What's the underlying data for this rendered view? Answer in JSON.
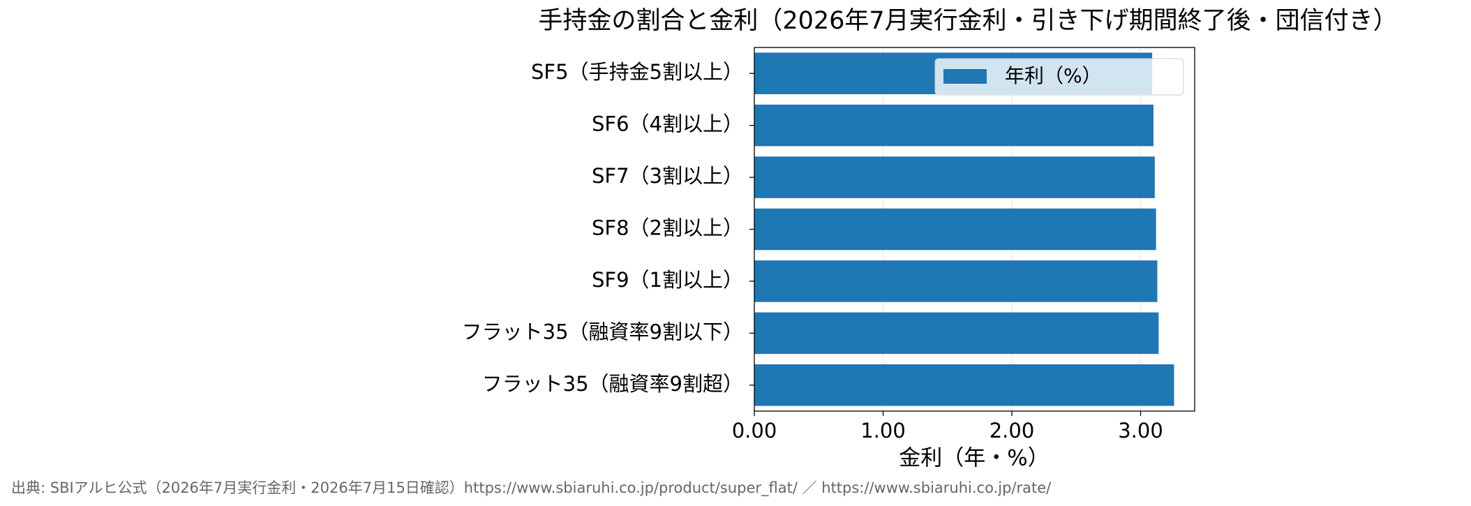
{
  "chart_data": {
    "type": "barh",
    "title": "手持金の割合と金利（2026年7月実行金利・引き下げ期間終了後・団信付き）",
    "xlabel": "金利（年・%）",
    "source": "出典: SBIアルヒ公式（2026年7月実行金利・2026年7月15日確認）https://www.sbiaruhi.co.jp/product/super_flat/ ／ https://www.sbiaruhi.co.jp/rate/",
    "categories": [
      "SF5（手持金5割以上）",
      "SF6（4割以上）",
      "SF7（3割以上）",
      "SF8（2割以上）",
      "SF9（1割以上）",
      "フラット35（融資率9割以下）",
      "フラット35（融資率9割超）"
    ],
    "series": [
      {
        "name": "年利（%）",
        "color": "#1f77b4",
        "values": [
          3.09,
          3.1,
          3.11,
          3.12,
          3.13,
          3.14,
          3.26
        ]
      }
    ],
    "xlim": [
      0,
      3.42
    ],
    "xticks": [
      {
        "value": 0,
        "label": "0.00"
      },
      {
        "value": 1,
        "label": "1.00"
      },
      {
        "value": 2,
        "label": "2.00"
      },
      {
        "value": 3,
        "label": "3.00"
      }
    ],
    "grid": true,
    "legend": "upper right"
  }
}
